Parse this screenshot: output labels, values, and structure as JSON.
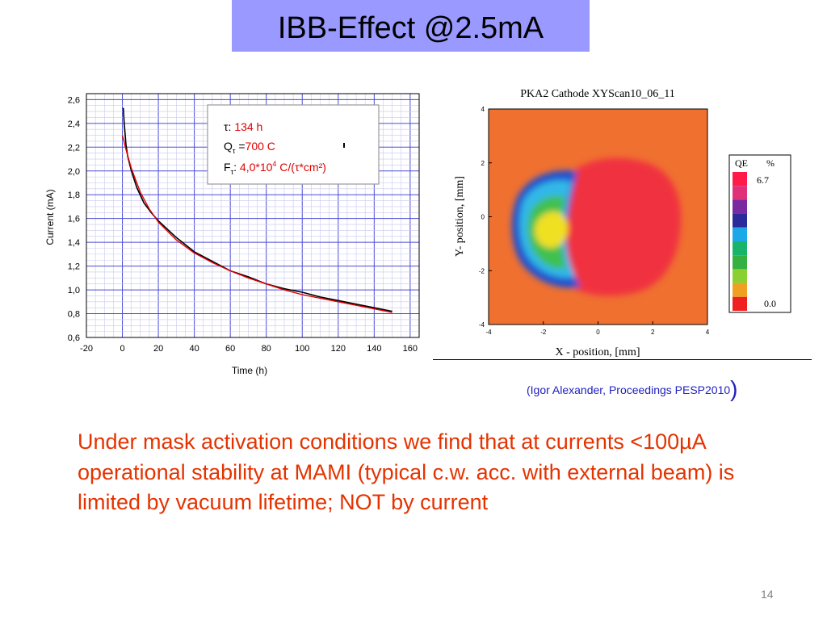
{
  "slide": {
    "title": "IBB-Effect @2.5mA",
    "citation_text": "(Igor Alexander, Proceedings PESP2010",
    "citation_close": ")",
    "body_text": "Under mask activation conditions we find that at currents <100µA operational stability at MAMI (typical c.w. acc. with external beam) is  limited by vacuum lifetime; NOT by current",
    "page_number": "14"
  },
  "chart_data": [
    {
      "type": "line",
      "xlabel": "Time (h)",
      "ylabel": "Current (mA)",
      "xlim": [
        -20,
        165
      ],
      "ylim": [
        0.6,
        2.65
      ],
      "xticks": [
        -20,
        0,
        20,
        40,
        60,
        80,
        100,
        120,
        140,
        160
      ],
      "yticks": [
        0.6,
        0.8,
        1.0,
        1.2,
        1.4,
        1.6,
        1.8,
        2.0,
        2.2,
        2.4,
        2.6
      ],
      "grid": true,
      "series": [
        {
          "color": "#000000",
          "x": [
            0.5,
            1,
            2,
            3,
            5,
            8,
            12,
            16,
            20,
            30,
            40,
            50,
            60,
            70,
            80,
            90,
            100,
            110,
            120,
            130,
            140,
            150
          ],
          "y": [
            2.53,
            2.4,
            2.22,
            2.12,
            2.0,
            1.86,
            1.73,
            1.65,
            1.58,
            1.44,
            1.32,
            1.24,
            1.16,
            1.11,
            1.05,
            1.01,
            0.98,
            0.94,
            0.91,
            0.88,
            0.85,
            0.82
          ]
        },
        {
          "color": "#e00000",
          "x": [
            0,
            2,
            5,
            10,
            15,
            20,
            30,
            40,
            50,
            60,
            70,
            80,
            90,
            100,
            110,
            120,
            130,
            140,
            150
          ],
          "y": [
            2.3,
            2.18,
            2.02,
            1.82,
            1.68,
            1.57,
            1.42,
            1.31,
            1.23,
            1.16,
            1.1,
            1.05,
            1.0,
            0.96,
            0.93,
            0.9,
            0.87,
            0.84,
            0.81
          ]
        }
      ],
      "legend_box": {
        "tau_symbol": "τ",
        "tau_sep": ": ",
        "tau_value": "134 h",
        "q_symbol": "Q",
        "q_sub": "τ",
        "q_sep": " =",
        "q_value": "700 C",
        "f_symbol": "F",
        "f_sub": "τ",
        "f_sep": ": ",
        "f_value_a": "4,0*10",
        "f_exp": "4",
        "f_value_b": " C/(τ*cm²)",
        "red": "#e00000"
      }
    },
    {
      "type": "heatmap",
      "title": "PKA2   Cathode    XYScan10_06_11",
      "xlabel": "X - position, [mm]",
      "ylabel": "Y- position, [mm]",
      "xlim": [
        -4,
        4
      ],
      "ylim": [
        -4,
        4
      ],
      "xticks": [
        -4,
        -2,
        0,
        2,
        4
      ],
      "yticks": [
        -4,
        -2,
        0,
        2,
        4
      ],
      "colorbar": {
        "label": "QE",
        "unit": "%",
        "max": "6.7",
        "min": "0.0",
        "colors": [
          "#ff1a4a",
          "#e0307a",
          "#7a2aa0",
          "#2a2a9a",
          "#1aa8e8",
          "#18b46a",
          "#36b040",
          "#8ad030",
          "#f0a020",
          "#f02020"
        ]
      },
      "colors": {
        "background": "#f07030",
        "red": "#f03040",
        "blue": "#2050d0",
        "cyan": "#30b8e8",
        "green": "#40c050",
        "yellow": "#f0e020"
      }
    }
  ]
}
